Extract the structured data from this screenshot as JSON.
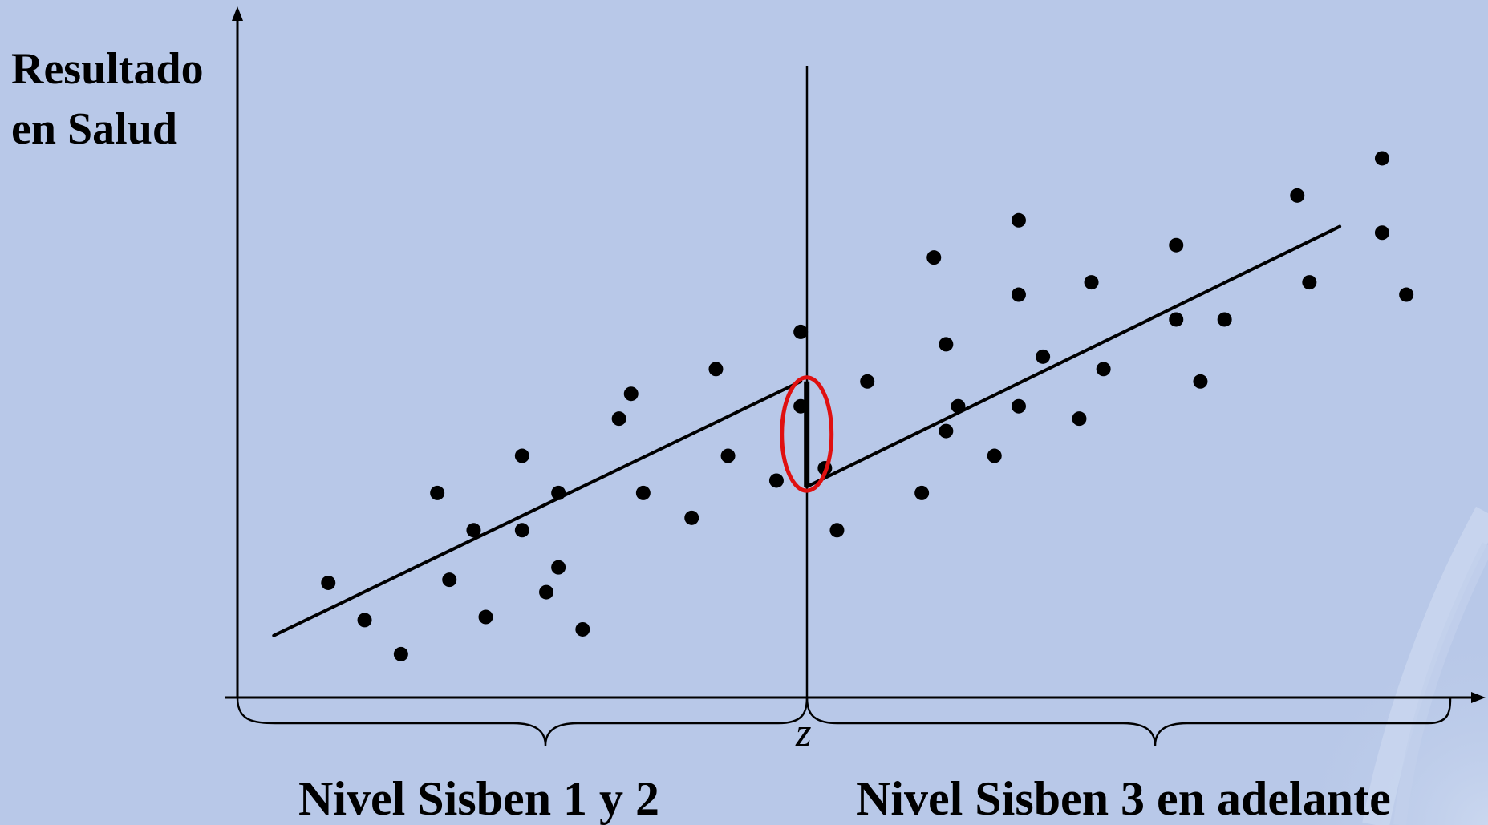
{
  "y_axis_title": {
    "line1": "Resultado",
    "line2": "en Salud"
  },
  "cutoff_label": "z",
  "groups": {
    "left": "Nivel Sisben 1 y 2",
    "right": "Nivel Sisben 3 en adelante"
  },
  "colors": {
    "background": "#b8c8e8",
    "ink": "#000000",
    "highlight": "#e01010"
  },
  "chart_data": {
    "type": "scatter",
    "title": "",
    "xlabel": "",
    "ylabel": "Resultado en Salud",
    "xlim": [
      0,
      100
    ],
    "ylim": [
      0,
      100
    ],
    "cutoff_x": 47,
    "points_left": [
      [
        7.5,
        18.5
      ],
      [
        10.5,
        12.5
      ],
      [
        13.5,
        7
      ],
      [
        16.5,
        33
      ],
      [
        17.5,
        19
      ],
      [
        19.5,
        27
      ],
      [
        20.5,
        13
      ],
      [
        23.5,
        27
      ],
      [
        23.5,
        39
      ],
      [
        25.5,
        17
      ],
      [
        26.5,
        21
      ],
      [
        26.5,
        33
      ],
      [
        28.5,
        11
      ],
      [
        31.5,
        45
      ],
      [
        32.5,
        49
      ],
      [
        33.5,
        33
      ],
      [
        37.5,
        29
      ],
      [
        39.5,
        53
      ],
      [
        40.5,
        39
      ],
      [
        44.5,
        35
      ],
      [
        46.5,
        47
      ],
      [
        46.5,
        59
      ]
    ],
    "points_right": [
      [
        48.5,
        37
      ],
      [
        49.5,
        27
      ],
      [
        52,
        51
      ],
      [
        56.5,
        33
      ],
      [
        57.5,
        71
      ],
      [
        58.5,
        57
      ],
      [
        58.5,
        43
      ],
      [
        59.5,
        47
      ],
      [
        62.5,
        39
      ],
      [
        64.5,
        77
      ],
      [
        64.5,
        65
      ],
      [
        64.5,
        47
      ],
      [
        66.5,
        55
      ],
      [
        69.5,
        45
      ],
      [
        70.5,
        67
      ],
      [
        71.5,
        53
      ],
      [
        77.5,
        73
      ],
      [
        77.5,
        61
      ],
      [
        79.5,
        51
      ],
      [
        81.5,
        61
      ],
      [
        87.5,
        81
      ],
      [
        88.5,
        67
      ],
      [
        94.5,
        87
      ],
      [
        94.5,
        75
      ],
      [
        96.5,
        65
      ]
    ],
    "regression_left": {
      "x": [
        3,
        46.5
      ],
      "y": [
        10,
        51
      ]
    },
    "regression_right": {
      "x": [
        47,
        91
      ],
      "y": [
        34,
        76
      ]
    },
    "discontinuity": {
      "x": 47,
      "y_low": 34,
      "y_high": 51
    }
  }
}
